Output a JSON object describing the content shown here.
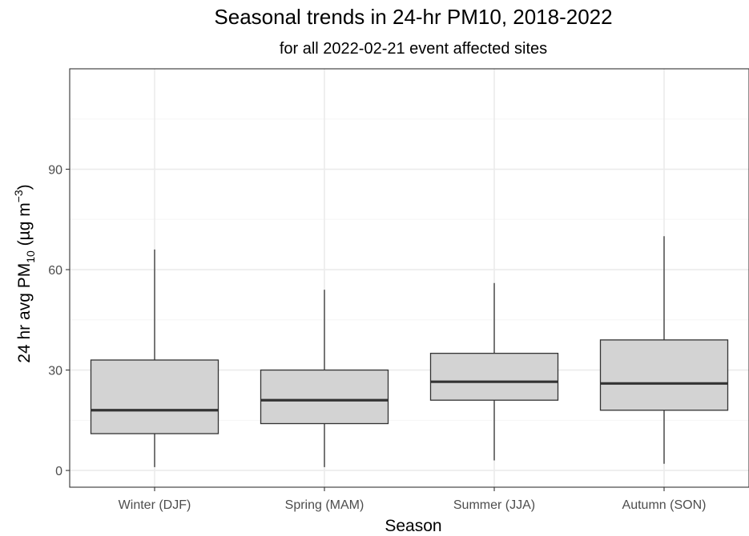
{
  "chart_data": {
    "type": "box",
    "title": "Seasonal trends in 24-hr PM10, 2018-2022",
    "subtitle": "for all 2022-02-21 event affected sites",
    "xlabel": "Season",
    "ylabel": {
      "prefix": "24 hr avg PM",
      "subscript": "10",
      "units_open": " (µg m",
      "superscript": "−3",
      "units_close": ")"
    },
    "categories": [
      "Winter (DJF)",
      "Spring (MAM)",
      "Summer (JJA)",
      "Autumn (SON)"
    ],
    "boxes": [
      {
        "category": "Winter (DJF)",
        "min": 1,
        "q1": 11,
        "median": 18,
        "q3": 33,
        "max": 66
      },
      {
        "category": "Spring (MAM)",
        "min": 1,
        "q1": 14,
        "median": 21,
        "q3": 30,
        "max": 54
      },
      {
        "category": "Summer (JJA)",
        "min": 3,
        "q1": 21,
        "median": 26.5,
        "q3": 35,
        "max": 56
      },
      {
        "category": "Autumn (SON)",
        "min": 2,
        "q1": 18,
        "median": 26,
        "q3": 39,
        "max": 70
      }
    ],
    "yticks": [
      0,
      30,
      60,
      90
    ],
    "ylim": [
      -5,
      120
    ],
    "grid": true,
    "colors": {
      "box_fill": "#d3d3d3",
      "box_stroke": "#333333",
      "grid_major": "#ebebeb",
      "grid_minor": "#f5f5f5",
      "panel_border": "#333333",
      "tick_label": "#4d4d4d"
    }
  }
}
